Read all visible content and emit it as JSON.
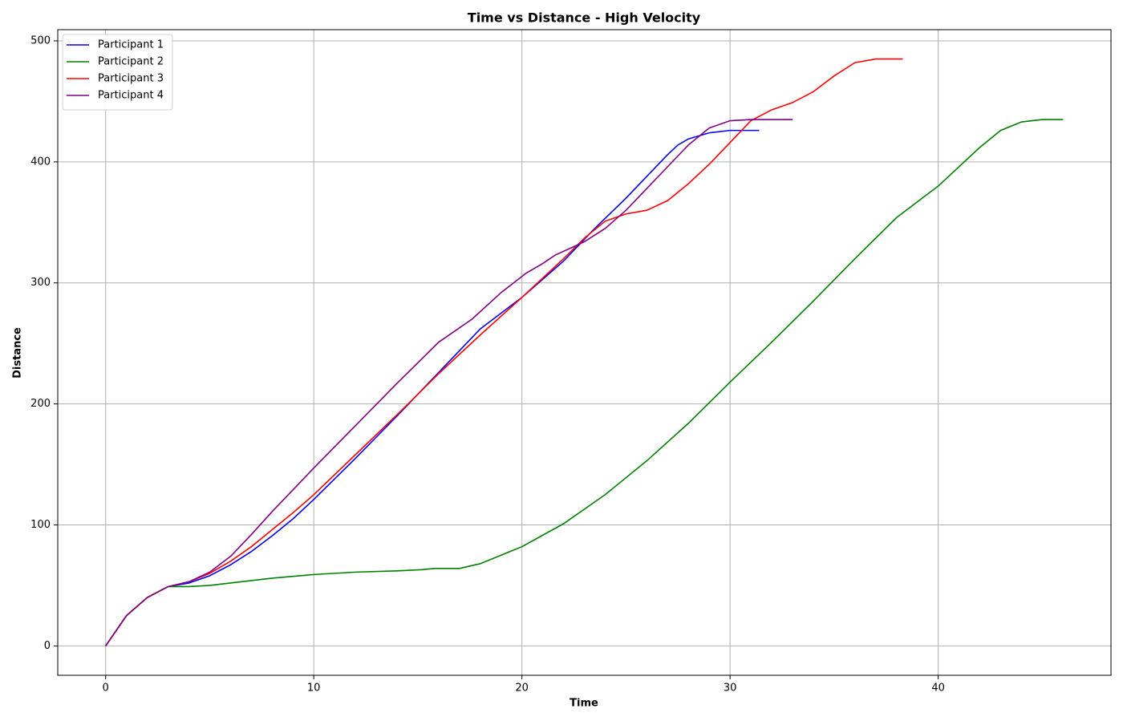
{
  "chart_data": {
    "type": "line",
    "title": "Time vs Distance - High Velocity",
    "x_label": "Time",
    "y_label": "Distance",
    "xlim": [
      -2.3,
      48.3
    ],
    "ylim": [
      -24.25,
      509.25
    ],
    "xticks": [
      0,
      10,
      20,
      30,
      40
    ],
    "yticks": [
      0,
      100,
      200,
      300,
      400,
      500
    ],
    "grid": true,
    "legend": "upper-left",
    "series": [
      {
        "name": "Participant 1",
        "color": "#0000ff",
        "x": [
          0,
          1,
          2,
          3,
          4,
          5,
          6,
          7,
          8,
          9,
          10,
          12,
          14,
          16,
          18,
          20,
          22,
          23.5,
          25,
          26,
          27,
          27.5,
          28,
          29,
          30,
          31.4
        ],
        "values": [
          0,
          25,
          40,
          49,
          52,
          58,
          67,
          78,
          91,
          105,
          121,
          155,
          190,
          226,
          262,
          288,
          318,
          345,
          370,
          388,
          406,
          414,
          419,
          424,
          426,
          426
        ]
      },
      {
        "name": "Participant 2",
        "color": "#008000",
        "x": [
          0,
          1,
          2,
          3,
          4,
          5,
          6,
          8,
          10,
          12,
          14,
          15.2,
          15.8,
          17,
          18,
          19,
          20,
          22,
          24,
          26,
          28,
          30,
          32,
          34,
          36,
          38,
          40,
          42,
          43,
          44,
          45,
          46
        ],
        "values": [
          0,
          25,
          40,
          49,
          49,
          50,
          52,
          56,
          59,
          61,
          62,
          63,
          64,
          64,
          68,
          75,
          82,
          101,
          125,
          153,
          184,
          218,
          251,
          285,
          320,
          354,
          380,
          412,
          426,
          433,
          435,
          435
        ]
      },
      {
        "name": "Participant 3",
        "color": "#ff0000",
        "x": [
          0,
          1,
          2,
          3,
          4,
          5,
          6,
          7,
          8,
          9,
          10,
          12,
          14,
          16,
          18,
          20,
          22,
          23,
          24,
          25,
          26,
          27,
          28,
          29,
          30,
          31,
          32,
          33,
          34,
          35,
          36,
          37,
          38.3
        ],
        "values": [
          0,
          25,
          40,
          49,
          53,
          60,
          70,
          82,
          96,
          110,
          125,
          158,
          191,
          225,
          257,
          288,
          320,
          337,
          351,
          357,
          360,
          368,
          382,
          398,
          416,
          434,
          443,
          449,
          458,
          471,
          482,
          485,
          485
        ]
      },
      {
        "name": "Participant 4",
        "color": "#800080",
        "x": [
          0,
          1,
          2,
          3,
          4,
          5,
          6,
          7,
          8,
          9,
          10,
          12,
          14,
          16,
          17.6,
          19,
          20.2,
          21,
          21.6,
          22.5,
          23,
          24,
          25,
          26,
          27,
          28,
          29,
          30,
          31,
          33
        ],
        "values": [
          0,
          25,
          40,
          49,
          53,
          61,
          74,
          92,
          111,
          129,
          147,
          182,
          217,
          251,
          270,
          292,
          308,
          316,
          323,
          330,
          334,
          345,
          360,
          378,
          396,
          414,
          428,
          434,
          435,
          435
        ]
      }
    ]
  }
}
